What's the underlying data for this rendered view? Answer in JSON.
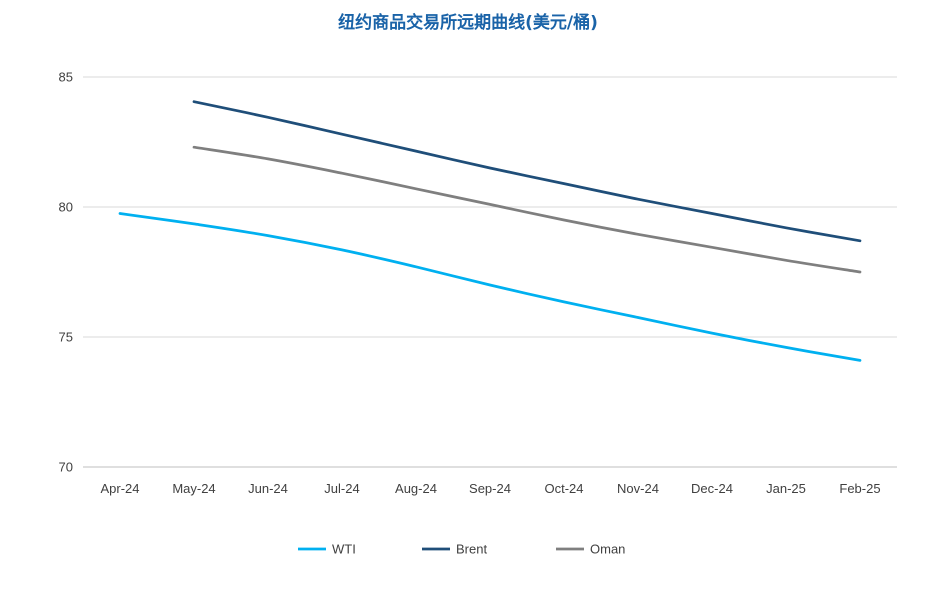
{
  "colors": {
    "title": "#1a63a8",
    "grid": "#d9d9d9",
    "axis": "#bfbfbf",
    "text": "#404040"
  },
  "chart_data": {
    "type": "line",
    "title": "纽约商品交易所远期曲线(美元/桶)",
    "xlabel": "",
    "ylabel": "",
    "categories": [
      "Apr-24",
      "May-24",
      "Jun-24",
      "Jul-24",
      "Aug-24",
      "Sep-24",
      "Oct-24",
      "Nov-24",
      "Dec-24",
      "Jan-25",
      "Feb-25"
    ],
    "ylim": [
      70,
      85
    ],
    "yticks": [
      70,
      75,
      80,
      85
    ],
    "grid": true,
    "legend_position": "bottom",
    "series": [
      {
        "name": "WTI",
        "color": "#00b0f0",
        "values": [
          79.75,
          79.35,
          78.9,
          78.35,
          77.7,
          77.0,
          76.35,
          75.75,
          75.15,
          74.6,
          74.1
        ]
      },
      {
        "name": "Brent",
        "color": "#1f4e79",
        "values": [
          null,
          84.05,
          83.45,
          82.8,
          82.15,
          81.5,
          80.9,
          80.3,
          79.75,
          79.2,
          78.7
        ]
      },
      {
        "name": "Oman",
        "color": "#7f7f7f",
        "values": [
          null,
          82.3,
          81.85,
          81.3,
          80.7,
          80.1,
          79.5,
          78.95,
          78.45,
          77.95,
          77.5
        ]
      }
    ]
  }
}
